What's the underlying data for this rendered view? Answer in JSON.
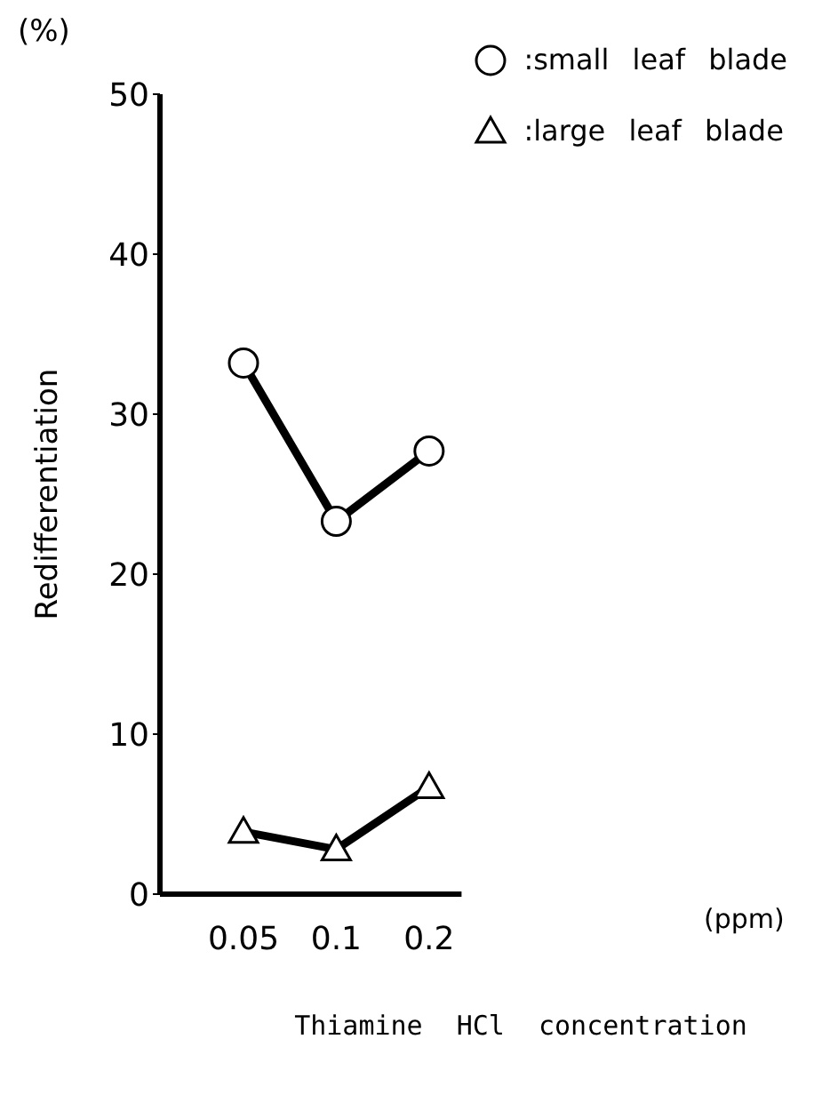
{
  "chart_data": {
    "type": "line",
    "xlabel": "Thiamine HCl concentration",
    "ylabel": "Redifferentiation",
    "annotations": [
      "(%)",
      "(ppm)"
    ],
    "categories": [
      "0.05",
      "0.1",
      "0.2"
    ],
    "series": [
      {
        "name": ":small leaf blade",
        "color": "#000000",
        "marker": "circle",
        "values": [
          33.2,
          23.3,
          27.7
        ]
      },
      {
        "name": ":large leaf blade",
        "color": "#000000",
        "marker": "triangle",
        "values": [
          3.9,
          2.8,
          6.7
        ]
      }
    ],
    "ylim": [
      0,
      50
    ],
    "yticks": [
      0,
      10,
      20,
      30,
      40,
      50
    ],
    "grid": false,
    "legend": "top right",
    "line_style": "solid"
  }
}
